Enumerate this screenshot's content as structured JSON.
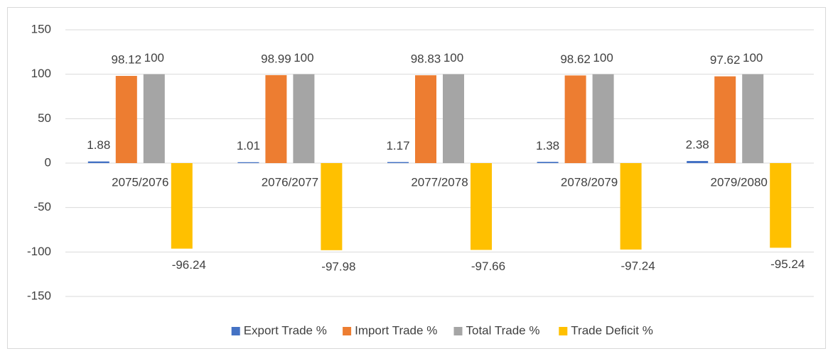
{
  "chart_data": {
    "type": "bar",
    "categories": [
      "2075/2076",
      "2076/2077",
      "2077/2078",
      "2078/2079",
      "2079/2080"
    ],
    "series": [
      {
        "name": "Export Trade %",
        "color": "#4472c4",
        "values": [
          1.88,
          1.01,
          1.17,
          1.38,
          2.38
        ]
      },
      {
        "name": "Import Trade %",
        "color": "#ed7d31",
        "values": [
          98.12,
          98.99,
          98.83,
          98.62,
          97.62
        ]
      },
      {
        "name": "Total Trade %",
        "color": "#a5a5a5",
        "values": [
          100,
          100,
          100,
          100,
          100
        ]
      },
      {
        "name": "Trade Deficit %",
        "color": "#ffc000",
        "values": [
          -96.24,
          -97.98,
          -97.66,
          -97.24,
          -95.24
        ]
      }
    ],
    "ylim": [
      -150,
      150
    ],
    "yticks": [
      -150,
      -100,
      -50,
      0,
      50,
      100,
      150
    ],
    "grid": true,
    "legend": "bottom",
    "data_labels": true
  }
}
